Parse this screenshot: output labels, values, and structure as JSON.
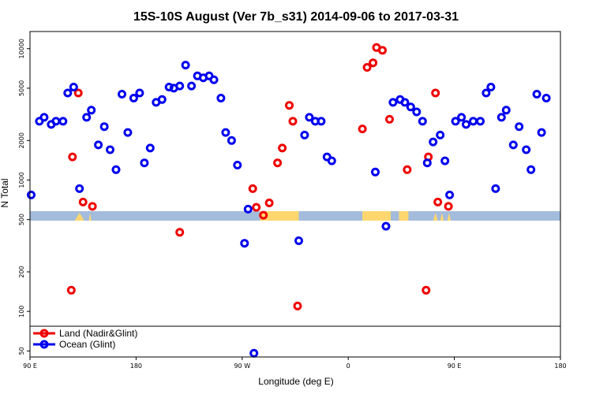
{
  "chart_data": {
    "type": "scatter",
    "title": "15S-10S August (Ver 7b_s31)   2014-09-06 to 2017-03-31",
    "xlabel": "Longitude (deg E)",
    "ylabel": "N Total",
    "x_scale": "linear",
    "y_scale": "log",
    "xlim": [
      90,
      540
    ],
    "ylim": [
      45,
      13500
    ],
    "grid": false,
    "legend_position": "bottom-left",
    "x_ticks": [
      {
        "value": 90,
        "label": "90 E"
      },
      {
        "value": 180,
        "label": "180"
      },
      {
        "value": 270,
        "label": "90 W"
      },
      {
        "value": 360,
        "label": "0"
      },
      {
        "value": 450,
        "label": "90 E"
      },
      {
        "value": 540,
        "label": "180"
      }
    ],
    "y_ticks": [
      {
        "value": 50,
        "label": "50"
      },
      {
        "value": 100,
        "label": "100"
      },
      {
        "value": 200,
        "label": "200"
      },
      {
        "value": 500,
        "label": "500"
      },
      {
        "value": 1000,
        "label": "1000"
      },
      {
        "value": 2000,
        "label": "2000"
      },
      {
        "value": 5000,
        "label": "5000"
      },
      {
        "value": 10000,
        "label": "10000"
      }
    ],
    "series": [
      {
        "name": "Land (Nadir&Glint)",
        "color": "#ee0000",
        "marker": "open-circle",
        "points": [
          [
            125,
            145
          ],
          [
            126,
            1500
          ],
          [
            131,
            4600
          ],
          [
            135,
            680
          ],
          [
            143,
            630
          ],
          [
            217,
            400
          ],
          [
            279,
            860
          ],
          [
            282,
            620
          ],
          [
            288,
            540
          ],
          [
            293,
            670
          ],
          [
            300,
            1350
          ],
          [
            304,
            1750
          ],
          [
            310,
            3700
          ],
          [
            313,
            2800
          ],
          [
            317,
            110
          ],
          [
            372,
            2450
          ],
          [
            376,
            7200
          ],
          [
            381,
            7800
          ],
          [
            384,
            10200
          ],
          [
            389,
            9700
          ],
          [
            395,
            2900
          ],
          [
            410,
            1200
          ],
          [
            426,
            145
          ],
          [
            428,
            1500
          ],
          [
            434,
            4600
          ],
          [
            436,
            680
          ],
          [
            445,
            630
          ]
        ]
      },
      {
        "name": "Ocean (Glint)",
        "color": "#0000ee",
        "marker": "open-circle",
        "points": [
          [
            91,
            770
          ],
          [
            98,
            2800
          ],
          [
            102,
            3000
          ],
          [
            108,
            2650
          ],
          [
            112,
            2800
          ],
          [
            118,
            2800
          ],
          [
            122,
            4600
          ],
          [
            127,
            5100
          ],
          [
            132,
            860
          ],
          [
            138,
            3000
          ],
          [
            142,
            3400
          ],
          [
            148,
            1850
          ],
          [
            153,
            2550
          ],
          [
            158,
            1700
          ],
          [
            163,
            1200
          ],
          [
            168,
            4500
          ],
          [
            173,
            2300
          ],
          [
            178,
            4200
          ],
          [
            183,
            4600
          ],
          [
            187,
            1350
          ],
          [
            192,
            1750
          ],
          [
            197,
            3900
          ],
          [
            202,
            4100
          ],
          [
            208,
            5100
          ],
          [
            212,
            5000
          ],
          [
            217,
            5200
          ],
          [
            222,
            7500
          ],
          [
            227,
            5200
          ],
          [
            232,
            6200
          ],
          [
            237,
            6000
          ],
          [
            242,
            6200
          ],
          [
            246,
            5800
          ],
          [
            252,
            4200
          ],
          [
            256,
            2300
          ],
          [
            261,
            2000
          ],
          [
            266,
            1300
          ],
          [
            272,
            330
          ],
          [
            275,
            600
          ],
          [
            280,
            48
          ],
          [
            318,
            345
          ],
          [
            323,
            2200
          ],
          [
            327,
            3000
          ],
          [
            332,
            2800
          ],
          [
            337,
            2800
          ],
          [
            342,
            1500
          ],
          [
            346,
            1400
          ],
          [
            383,
            1150
          ],
          [
            392,
            445
          ],
          [
            398,
            3900
          ],
          [
            404,
            4100
          ],
          [
            408,
            3900
          ],
          [
            413,
            3600
          ],
          [
            418,
            3300
          ],
          [
            423,
            2800
          ],
          [
            427,
            1350
          ],
          [
            432,
            1950
          ],
          [
            438,
            2200
          ],
          [
            442,
            1400
          ],
          [
            446,
            770
          ],
          [
            451,
            2800
          ],
          [
            456,
            3000
          ],
          [
            460,
            2650
          ],
          [
            466,
            2800
          ],
          [
            472,
            2800
          ],
          [
            477,
            4600
          ],
          [
            481,
            5100
          ],
          [
            485,
            860
          ],
          [
            490,
            3000
          ],
          [
            494,
            3400
          ],
          [
            500,
            1850
          ],
          [
            505,
            2550
          ],
          [
            511,
            1700
          ],
          [
            515,
            1200
          ],
          [
            520,
            4500
          ],
          [
            524,
            2300
          ],
          [
            528,
            4200
          ]
        ]
      }
    ]
  },
  "legend": {
    "land_label": "Land (Nadir&Glint)",
    "ocean_label": "Ocean (Glint)"
  },
  "colors": {
    "land": "#ee0000",
    "ocean": "#0000ee",
    "band_ocean": "#a4bcdc",
    "band_land": "#ffd76e"
  }
}
